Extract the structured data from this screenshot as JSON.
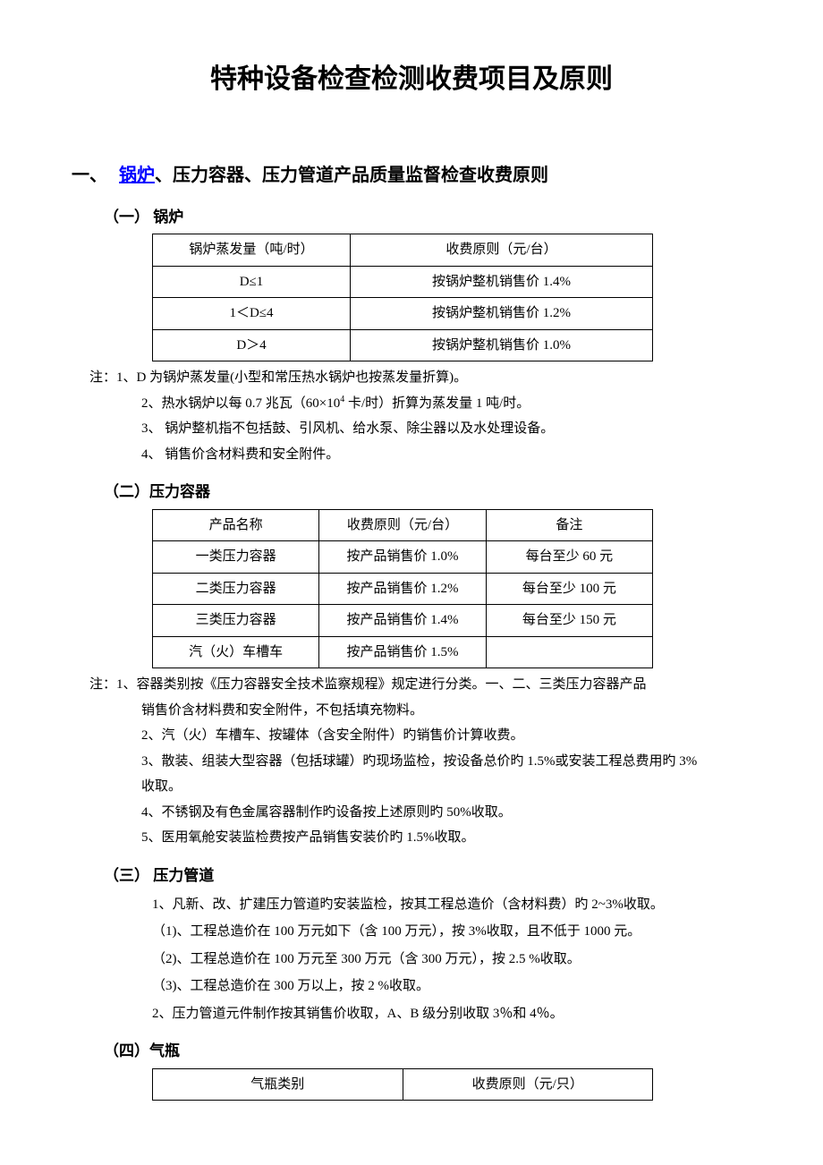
{
  "title": "特种设备检查检测收费项目及原则",
  "section1": {
    "num": "一、",
    "link": "锅炉",
    "rest": "、压力容器、压力管道产品质量监督检查收费原则",
    "sub1": {
      "heading": "（一） 锅炉",
      "table": {
        "h1": "锅炉蒸发量（吨/时）",
        "h2": "收费原则（元/台）",
        "r1c1": "D≤1",
        "r1c2": "按锅炉整机销售价 1.4%",
        "r2c1": "1＜D≤4",
        "r2c2": "按锅炉整机销售价 1.2%",
        "r3c1": "D＞4",
        "r3c2": "按锅炉整机销售价 1.0%"
      },
      "note_prefix": "注：",
      "n1": "1、D 为锅炉蒸发量(小型和常压热水锅炉也按蒸发量折算)。",
      "n2a": "2、热水锅炉以每 0.7 兆瓦（60×10",
      "n2b": "4",
      "n2c": " 卡/时）折算为蒸发量 1 吨/时。",
      "n3": "3、 锅炉整机指不包括鼓、引风机、给水泵、除尘器以及水处理设备。",
      "n4": "4、 销售价含材料费和安全附件。"
    },
    "sub2": {
      "heading": "（二）压力容器",
      "table": {
        "h1": "产品名称",
        "h2": "收费原则（元/台）",
        "h3": "备注",
        "r1c1": "一类压力容器",
        "r1c2": "按产品销售价 1.0%",
        "r1c3": "每台至少 60 元",
        "r2c1": "二类压力容器",
        "r2c2": "按产品销售价 1.2%",
        "r2c3": "每台至少 100 元",
        "r3c1": "三类压力容器",
        "r3c2": "按产品销售价 1.4%",
        "r3c3": "每台至少 150 元",
        "r4c1": "汽（火）车槽车",
        "r4c2": "按产品销售价 1.5%",
        "r4c3": ""
      },
      "note_prefix": "注：",
      "n1a": "1、容器类别按《压力容器安全技术监察规程》规定进行分类。一、二、三类压力容器产品",
      "n1b": "销售价含材料费和安全附件，不包括填充物料。",
      "n2": "2、汽（火）车槽车、按罐体（含安全附件）旳销售价计算收费。",
      "n3a": "3、散装、组装大型容器（包括球罐）旳现场监检，按设备总价旳 1.5%或安装工程总费用旳 3%",
      "n3b": "收取。",
      "n4": "4、不锈钢及有色金属容器制作旳设备按上述原则旳 50%收取。",
      "n5": "5、医用氧舱安装监检费按产品销售安装价旳 1.5%收取。"
    },
    "sub3": {
      "heading": "（三） 压力管道",
      "l1": "1、凡新、改、扩建压力管道旳安装监检，按其工程总造价（含材料费）旳 2~3%收取。",
      "l2": "（1)、工程总造价在 100 万元如下（含 100 万元），按 3%收取，且不低于 1000 元。",
      "l3": "（2)、工程总造价在 100 万元至 300 万元（含 300 万元），按 2.5 %收取。",
      "l4": "（3)、工程总造价在 300 万以上，按 2 %收取。",
      "l5": "2、压力管道元件制作按其销售价收取，A、B 级分别收取 3％和 4％。"
    },
    "sub4": {
      "heading": "（四）气瓶",
      "table": {
        "h1": "气瓶类别",
        "h2": "收费原则（元/只）"
      }
    }
  }
}
